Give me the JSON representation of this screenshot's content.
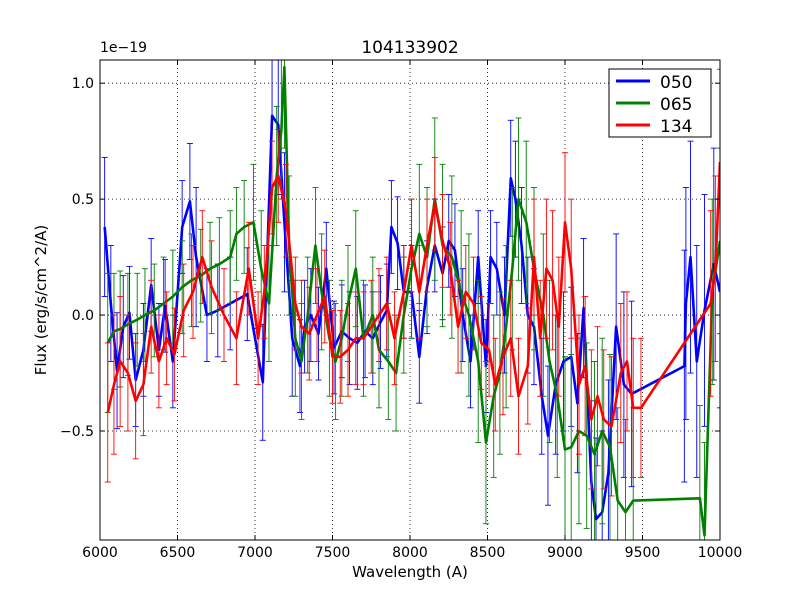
{
  "chart_data": {
    "type": "line",
    "title": "104133902",
    "xlabel": "Wavelength (A)",
    "ylabel": "Flux (erg/s/cm^2/A)",
    "offset_label": "1e−19",
    "xlim": [
      6000,
      10000
    ],
    "ylim": [
      -0.97,
      1.1
    ],
    "xticks": [
      6000,
      6500,
      7000,
      7500,
      8000,
      8500,
      9000,
      9500,
      10000
    ],
    "yticks": [
      -0.5,
      0.0,
      0.5,
      1.0
    ],
    "ytick_labels": [
      "−0.5",
      "0.0",
      "0.5",
      "1.0"
    ],
    "grid": true,
    "legend_position": "top-right",
    "series": [
      {
        "name": "050",
        "color": "#0000ff",
        "x": [
          6030,
          6070,
          6110,
          6150,
          6190,
          6230,
          6280,
          6330,
          6380,
          6420,
          6470,
          6530,
          6580,
          6620,
          6690,
          6760,
          6840,
          6950,
          7050,
          7110,
          7150,
          7190,
          7240,
          7290,
          7320,
          7360,
          7410,
          7460,
          7510,
          7560,
          7610,
          7660,
          7710,
          7760,
          7810,
          7850,
          7880,
          7920,
          7960,
          8010,
          8060,
          8110,
          8160,
          8210,
          8250,
          8290,
          8340,
          8390,
          8440,
          8490,
          8520,
          8560,
          8610,
          8650,
          8680,
          8720,
          8760,
          8800,
          8850,
          8890,
          8940,
          8990,
          9040,
          9080,
          9120,
          9170,
          9200,
          9240,
          9280,
          9330,
          9380,
          9430,
          9770,
          9780,
          9810,
          9850,
          9900,
          9960,
          10000
        ],
        "y": [
          0.38,
          0.05,
          -0.24,
          -0.05,
          0.01,
          -0.28,
          -0.15,
          0.13,
          -0.15,
          0.04,
          -0.2,
          0.38,
          0.49,
          0.25,
          0.0,
          0.02,
          0.05,
          0.09,
          -0.29,
          0.86,
          0.82,
          0.4,
          -0.1,
          -0.22,
          -0.05,
          0.0,
          -0.08,
          0.2,
          -0.14,
          -0.07,
          -0.1,
          -0.12,
          -0.07,
          -0.1,
          -0.03,
          0.02,
          0.38,
          0.31,
          0.1,
          0.1,
          -0.18,
          0.12,
          0.3,
          0.18,
          0.32,
          0.28,
          0.0,
          -0.2,
          0.25,
          -0.22,
          0.25,
          0.2,
          0.0,
          0.59,
          0.5,
          0.3,
          0.0,
          -0.05,
          -0.35,
          -0.52,
          -0.3,
          -0.2,
          -0.18,
          -0.38,
          0.03,
          -0.72,
          -0.88,
          -0.85,
          -0.68,
          -0.05,
          -0.3,
          -0.34,
          -0.22,
          0.05,
          0.25,
          -0.2,
          0.02,
          0.22,
          0.1
        ],
        "err": [
          0.3,
          0.25,
          0.25,
          0.22,
          0.2,
          0.2,
          0.2,
          0.2,
          0.2,
          0.2,
          0.2,
          0.2,
          0.25,
          0.3,
          0.2,
          0.2,
          0.2,
          0.2,
          0.25,
          0.3,
          0.3,
          0.3,
          0.25,
          0.2,
          0.2,
          0.2,
          0.2,
          0.2,
          0.2,
          0.2,
          0.2,
          0.2,
          0.2,
          0.2,
          0.2,
          0.2,
          0.2,
          0.2,
          0.2,
          0.2,
          0.2,
          0.2,
          0.2,
          0.2,
          0.2,
          0.2,
          0.2,
          0.2,
          0.2,
          0.2,
          0.2,
          0.2,
          0.25,
          0.25,
          0.25,
          0.25,
          0.25,
          0.25,
          0.25,
          0.3,
          0.3,
          0.3,
          0.3,
          0.3,
          0.3,
          0.35,
          0.35,
          0.35,
          0.4,
          0.4,
          0.4,
          0.4,
          0.5,
          0.5,
          0.5,
          0.5,
          0.5,
          0.5,
          0.5
        ]
      },
      {
        "name": "065",
        "color": "#008000",
        "x": [
          6050,
          6090,
          6130,
          6180,
          6240,
          6290,
          6350,
          6410,
          6470,
          6530,
          6590,
          6650,
          6710,
          6770,
          6840,
          6880,
          6930,
          6990,
          7040,
          7090,
          7140,
          7170,
          7190,
          7220,
          7260,
          7300,
          7340,
          7390,
          7430,
          7480,
          7520,
          7560,
          7600,
          7650,
          7700,
          7760,
          7800,
          7860,
          7910,
          7960,
          8010,
          8060,
          8110,
          8160,
          8210,
          8270,
          8330,
          8380,
          8440,
          8490,
          8540,
          8580,
          8620,
          8660,
          8700,
          8750,
          8800,
          8860,
          8900,
          8950,
          9000,
          9040,
          9090,
          9140,
          9190,
          9240,
          9290,
          9340,
          9390,
          9440,
          9870,
          9900,
          9950,
          10000
        ],
        "y": [
          -0.12,
          -0.07,
          -0.06,
          -0.04,
          -0.02,
          0.0,
          0.02,
          0.05,
          0.08,
          0.12,
          0.15,
          0.17,
          0.2,
          0.22,
          0.25,
          0.35,
          0.38,
          0.4,
          0.2,
          0.05,
          0.6,
          0.8,
          1.07,
          0.3,
          -0.1,
          -0.2,
          0.0,
          0.3,
          0.1,
          -0.1,
          -0.2,
          -0.1,
          0.05,
          0.2,
          -0.1,
          0.0,
          -0.15,
          -0.2,
          -0.25,
          0.0,
          0.2,
          0.35,
          0.25,
          0.5,
          0.3,
          0.25,
          0.1,
          0.0,
          -0.2,
          -0.55,
          -0.35,
          -0.25,
          -0.05,
          0.2,
          0.5,
          0.4,
          0.2,
          0.0,
          -0.2,
          -0.35,
          -0.58,
          -0.57,
          -0.5,
          -0.52,
          -0.6,
          -0.5,
          -0.57,
          -0.8,
          -0.85,
          -0.8,
          -0.79,
          -0.95,
          0.1,
          0.32
        ],
        "err": [
          0.3,
          0.25,
          0.25,
          0.22,
          0.2,
          0.2,
          0.2,
          0.2,
          0.2,
          0.2,
          0.2,
          0.2,
          0.2,
          0.2,
          0.2,
          0.2,
          0.2,
          0.25,
          0.25,
          0.25,
          0.3,
          0.3,
          0.35,
          0.3,
          0.25,
          0.25,
          0.25,
          0.25,
          0.25,
          0.25,
          0.25,
          0.25,
          0.25,
          0.25,
          0.25,
          0.25,
          0.25,
          0.25,
          0.25,
          0.25,
          0.3,
          0.3,
          0.3,
          0.35,
          0.35,
          0.35,
          0.35,
          0.35,
          0.35,
          0.35,
          0.35,
          0.35,
          0.35,
          0.35,
          0.35,
          0.35,
          0.35,
          0.35,
          0.35,
          0.35,
          0.4,
          0.4,
          0.4,
          0.4,
          0.4,
          0.4,
          0.4,
          0.4,
          0.4,
          0.4,
          0.4,
          0.4,
          0.4,
          0.4
        ]
      },
      {
        "name": "134",
        "color": "#ff0000",
        "x": [
          6050,
          6090,
          6130,
          6180,
          6230,
          6280,
          6330,
          6380,
          6430,
          6480,
          6540,
          6600,
          6660,
          6720,
          6800,
          6880,
          6960,
          7020,
          7060,
          7110,
          7150,
          7200,
          7260,
          7300,
          7350,
          7400,
          7450,
          7500,
          7550,
          7600,
          7650,
          7700,
          7750,
          7800,
          7850,
          7900,
          7960,
          8010,
          8060,
          8110,
          8160,
          8210,
          8260,
          8310,
          8360,
          8410,
          8460,
          8510,
          8550,
          8600,
          8650,
          8700,
          8760,
          8800,
          8840,
          8880,
          8920,
          8960,
          9000,
          9040,
          9090,
          9130,
          9170,
          9210,
          9250,
          9300,
          9360,
          9400,
          9440,
          9490,
          9940,
          9970,
          10000
        ],
        "y": [
          -0.42,
          -0.3,
          -0.2,
          -0.25,
          -0.37,
          -0.3,
          -0.05,
          -0.2,
          -0.1,
          -0.17,
          0.02,
          0.1,
          0.25,
          0.12,
          0.0,
          -0.1,
          0.2,
          -0.1,
          0.1,
          0.55,
          0.6,
          0.45,
          0.05,
          -0.05,
          -0.08,
          0.0,
          0.08,
          -0.18,
          -0.18,
          -0.15,
          -0.1,
          -0.1,
          -0.05,
          0.0,
          0.05,
          -0.1,
          0.1,
          0.3,
          0.1,
          0.3,
          0.48,
          0.32,
          0.2,
          -0.05,
          0.1,
          0.05,
          -0.12,
          -0.15,
          -0.3,
          -0.18,
          -0.1,
          -0.35,
          -0.22,
          0.25,
          -0.1,
          0.2,
          0.15,
          -0.05,
          0.4,
          0.2,
          -0.3,
          -0.22,
          -0.45,
          -0.35,
          -0.45,
          -0.48,
          -0.25,
          -0.2,
          -0.4,
          -0.4,
          0.05,
          0.2,
          0.66
        ],
        "err": [
          0.3,
          0.3,
          0.28,
          0.25,
          0.25,
          0.22,
          0.2,
          0.2,
          0.2,
          0.2,
          0.2,
          0.2,
          0.2,
          0.2,
          0.2,
          0.2,
          0.2,
          0.2,
          0.2,
          0.2,
          0.2,
          0.2,
          0.2,
          0.2,
          0.2,
          0.2,
          0.2,
          0.2,
          0.2,
          0.2,
          0.2,
          0.2,
          0.2,
          0.2,
          0.2,
          0.2,
          0.2,
          0.2,
          0.2,
          0.2,
          0.2,
          0.2,
          0.2,
          0.2,
          0.2,
          0.2,
          0.2,
          0.2,
          0.2,
          0.25,
          0.25,
          0.25,
          0.25,
          0.25,
          0.25,
          0.3,
          0.3,
          0.3,
          0.3,
          0.3,
          0.3,
          0.3,
          0.3,
          0.3,
          0.3,
          0.3,
          0.3,
          0.3,
          0.3,
          0.3,
          0.4,
          0.4,
          0.4
        ]
      }
    ]
  }
}
